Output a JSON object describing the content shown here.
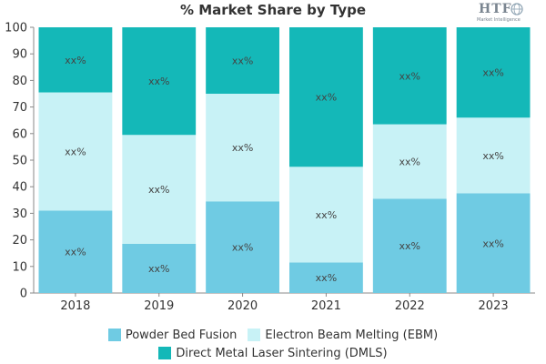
{
  "chart_data": {
    "type": "bar",
    "stacked": true,
    "title": "% Market Share by Type",
    "categories": [
      "2018",
      "2019",
      "2020",
      "2021",
      "2022",
      "2023"
    ],
    "series": [
      {
        "name": "Powder Bed Fusion",
        "color": "#6fcbe3",
        "values": [
          31,
          18.5,
          34.5,
          11.5,
          35.5,
          37.5
        ],
        "labels": [
          "xx%",
          "xx%",
          "xx%",
          "xx%",
          "xx%",
          "xx%"
        ]
      },
      {
        "name": "Electron Beam Melting (EBM)",
        "color": "#c8f2f6",
        "values": [
          44.5,
          41,
          40.5,
          36,
          28,
          28.5
        ],
        "labels": [
          "xx%",
          "xx%",
          "xx%",
          "xx%",
          "xx%",
          "xx%"
        ]
      },
      {
        "name": "Direct Metal Laser Sintering (DMLS)",
        "color": "#14b8b8",
        "values": [
          24.5,
          40.5,
          25,
          52.5,
          36.5,
          34
        ],
        "labels": [
          "xx%",
          "xx%",
          "xx%",
          "xx%",
          "xx%",
          "xx%"
        ]
      }
    ],
    "ylim": [
      0,
      100
    ],
    "yticks": [
      0,
      10,
      20,
      30,
      40,
      50,
      60,
      70,
      80,
      90,
      100
    ],
    "grid": false,
    "legend_position": "bottom"
  },
  "logo": {
    "text": "HTF",
    "subtext": "Market Intelligence"
  }
}
